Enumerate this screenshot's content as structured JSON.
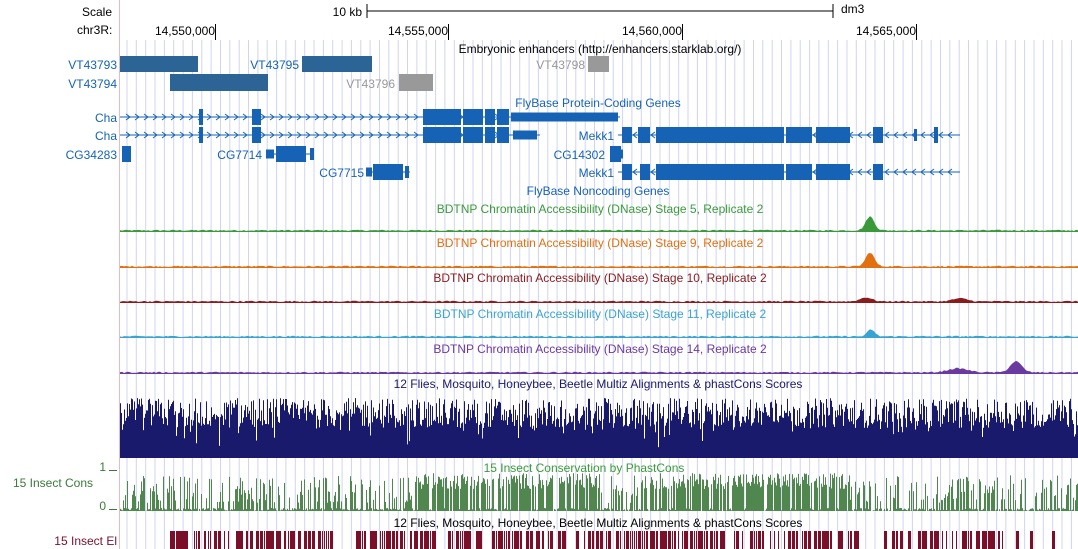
{
  "browser": {
    "colors": {
      "blue": "#1663b6",
      "gray": "#999999",
      "green": "#3a9a3a",
      "orange": "#e07010",
      "darkred": "#8a1c1c",
      "lightblue": "#3aa4d0",
      "purple": "#6a3aa0",
      "navy": "#1a1a6c",
      "cons": "#4f874f",
      "elements": "#7a0f2a",
      "grid": "#d0d4f0"
    },
    "scale": {
      "label": "Scale",
      "bar_label": "10 kb",
      "assembly": "dm3"
    },
    "ruler": {
      "label": "chr3R:",
      "ticks": [
        "14,550,000",
        "14,555,000",
        "14,560,000",
        "14,565,000"
      ]
    },
    "tracks": {
      "enhancers": {
        "title": "Embryonic enhancers (http://enhancers.starklab.org/)",
        "items": [
          {
            "label": "VT43793",
            "color": "blue"
          },
          {
            "label": "VT43794",
            "color": "blue"
          },
          {
            "label": "VT43795",
            "color": "blue"
          },
          {
            "label": "VT43796",
            "color": "gray"
          },
          {
            "label": "VT43798",
            "color": "gray"
          }
        ]
      },
      "genes": {
        "title": "FlyBase Protein-Coding Genes",
        "labels": [
          "Cha",
          "Cha",
          "CG34283",
          "CG7714",
          "CG7715",
          "Mekk1",
          "CG14302",
          "Mekk1"
        ]
      },
      "noncoding": {
        "title": "FlyBase Noncoding Genes"
      },
      "dnase": [
        {
          "title": "BDTNP Chromatin Accessibility (DNase) Stage 5, Replicate 2",
          "color": "green"
        },
        {
          "title": "BDTNP Chromatin Accessibility (DNase) Stage 9, Replicate 2",
          "color": "orange"
        },
        {
          "title": "BDTNP Chromatin Accessibility (DNase) Stage 10, Replicate 2",
          "color": "darkred"
        },
        {
          "title": "BDTNP Chromatin Accessibility (DNase) Stage 11, Replicate 2",
          "color": "lightblue"
        },
        {
          "title": "BDTNP Chromatin Accessibility (DNase) Stage 14, Replicate 2",
          "color": "purple"
        }
      ],
      "multiz": {
        "title": "12 Flies, Mosquito, Honeybee, Beetle Multiz Alignments & phastCons Scores"
      },
      "cons": {
        "side_label": "15 Insect Cons",
        "title": "15 Insect Conservation by PhastCons",
        "axis_max": "1",
        "axis_min": "0"
      },
      "elements": {
        "side_label": "15 Insect El",
        "title": "12 Flies, Mosquito, Honeybee, Beetle Multiz Alignments & phastCons Scores"
      }
    }
  }
}
